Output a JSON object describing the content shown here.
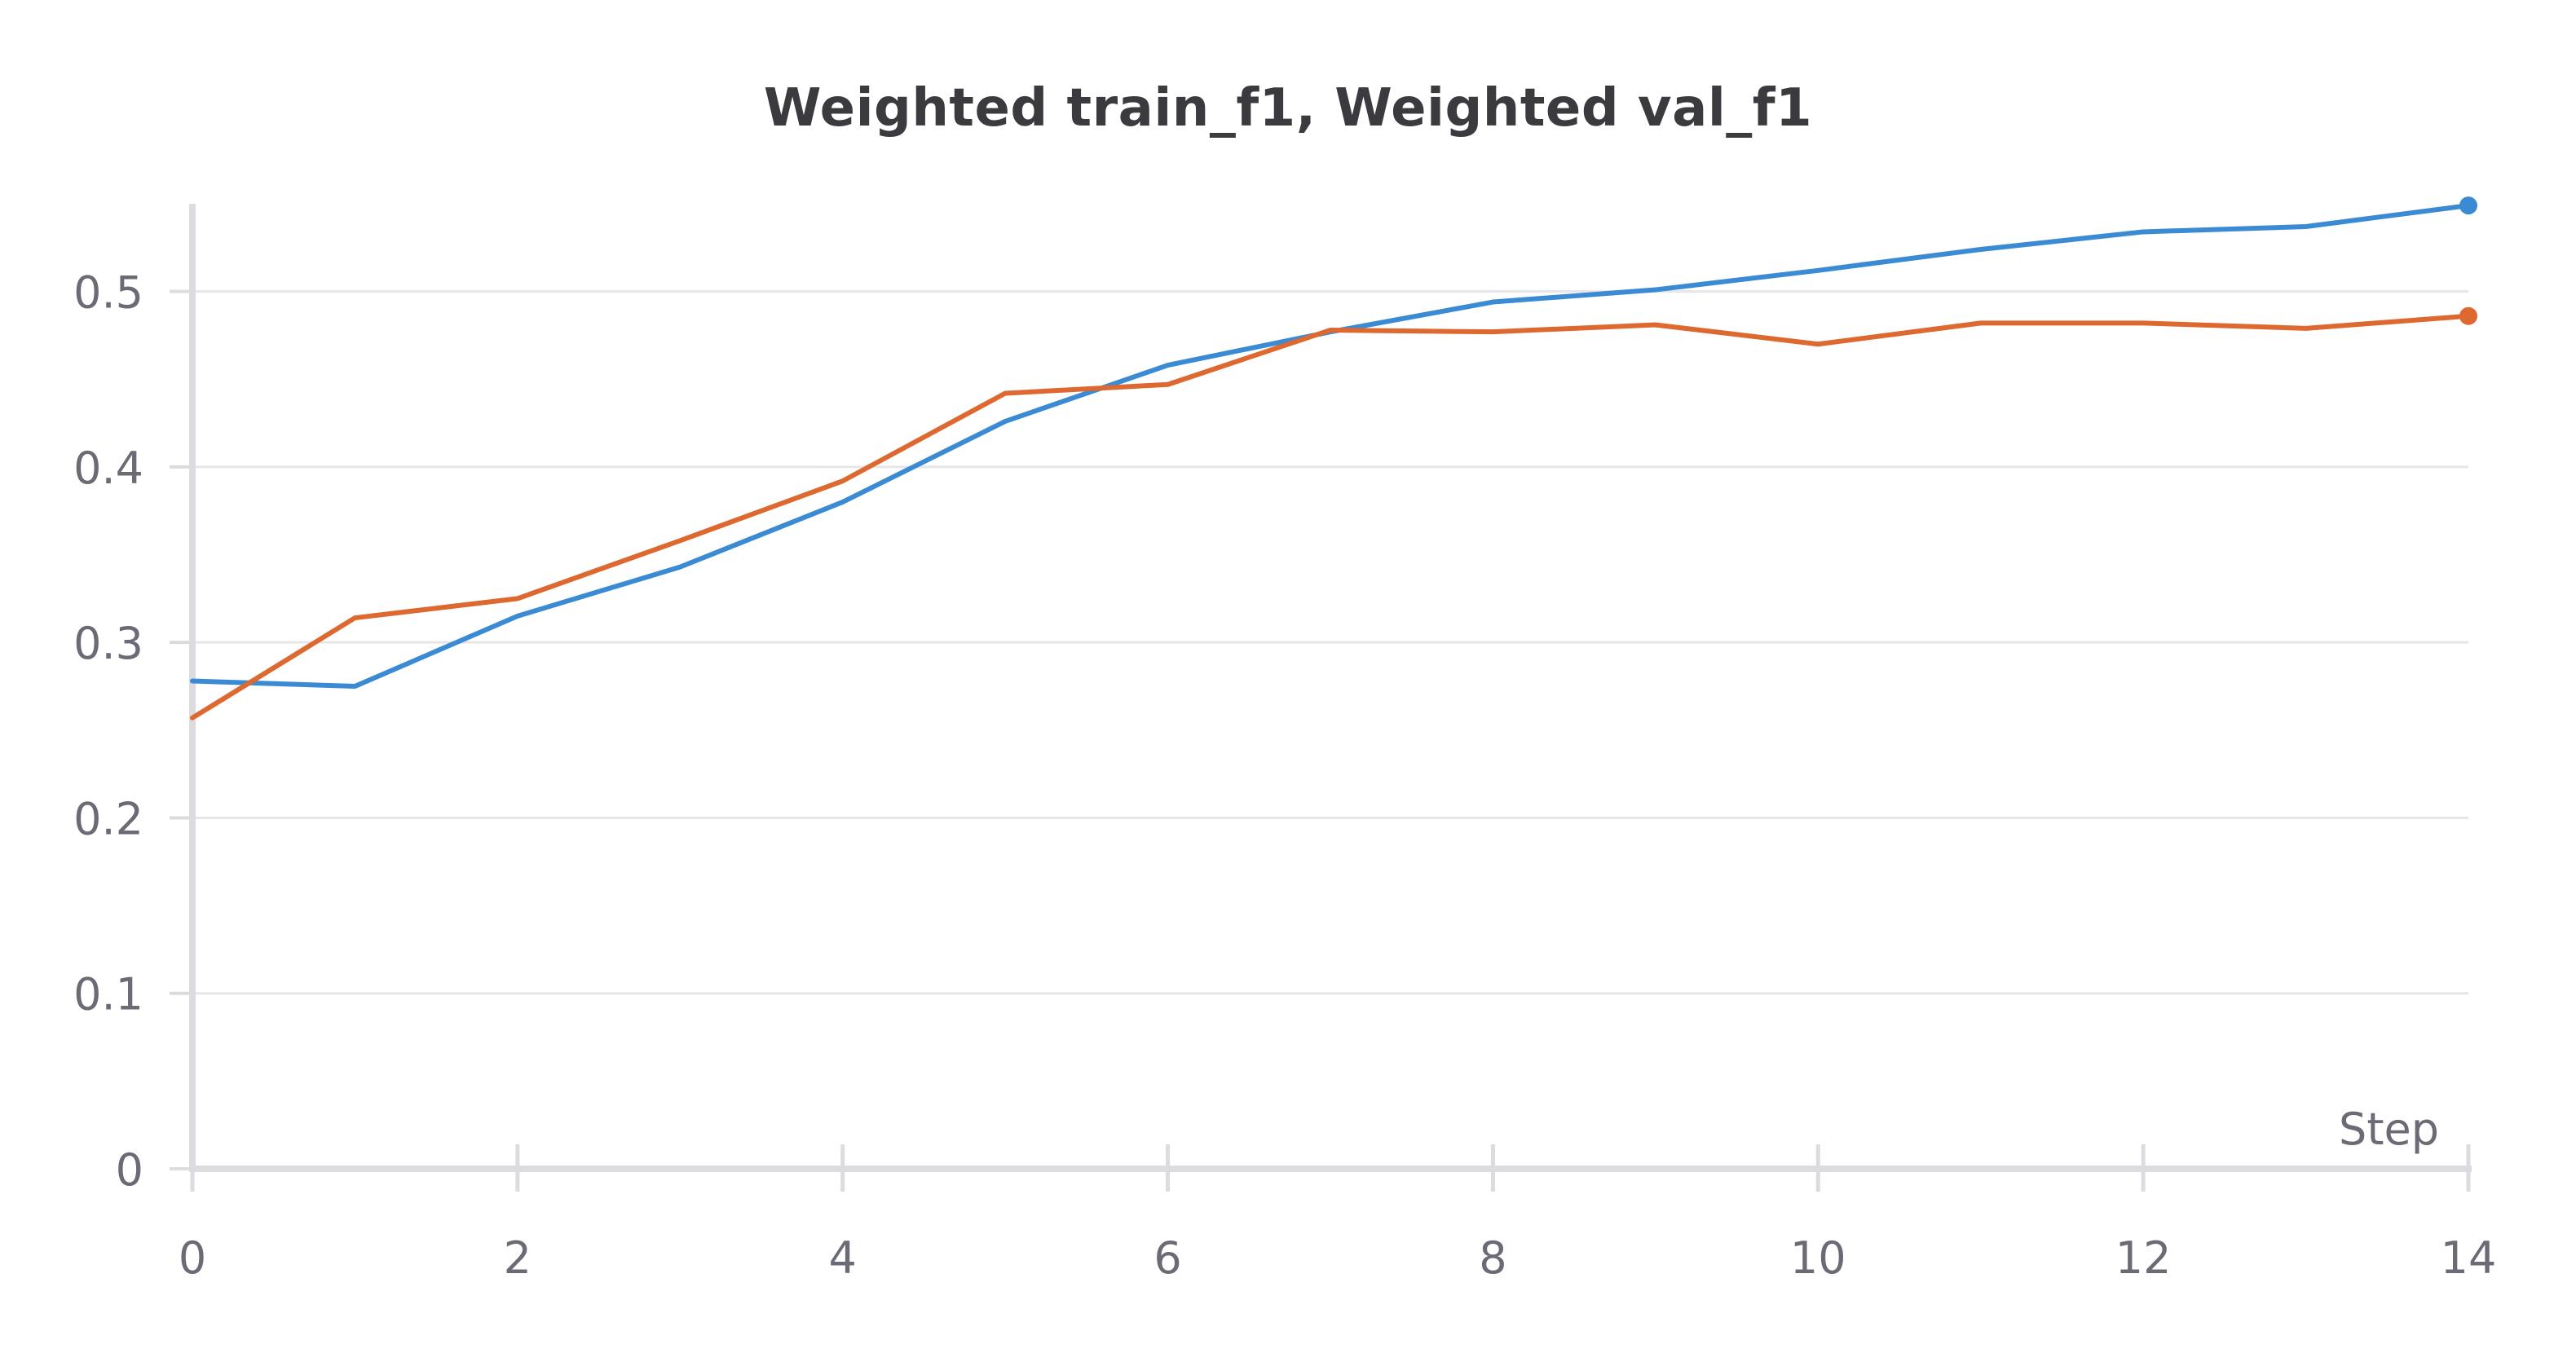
{
  "chart_data": {
    "type": "line",
    "title": "Weighted train_f1, Weighted val_f1",
    "xlabel": "Step",
    "ylabel": "",
    "xlim": [
      0,
      14
    ],
    "ylim": [
      0,
      0.55
    ],
    "x_ticks": [
      0,
      2,
      4,
      6,
      8,
      10,
      12,
      14
    ],
    "x_tick_labels": [
      "0",
      "2",
      "4",
      "6",
      "8",
      "10",
      "12",
      "14"
    ],
    "y_ticks": [
      0,
      0.1,
      0.2,
      0.3,
      0.4,
      0.5
    ],
    "y_tick_labels": [
      "0",
      "0.1",
      "0.2",
      "0.3",
      "0.4",
      "0.5"
    ],
    "grid": true,
    "x": [
      0,
      1,
      2,
      3,
      4,
      5,
      6,
      7,
      8,
      9,
      10,
      11,
      12,
      13,
      14
    ],
    "series": [
      {
        "color": "#3b8bd4",
        "values": [
          0.278,
          0.275,
          0.315,
          0.343,
          0.38,
          0.426,
          0.458,
          0.477,
          0.494,
          0.501,
          0.512,
          0.524,
          0.534,
          0.537,
          0.549
        ]
      },
      {
        "color": "#dd6930",
        "values": [
          0.257,
          0.314,
          0.325,
          0.358,
          0.392,
          0.442,
          0.447,
          0.478,
          0.477,
          0.481,
          0.47,
          0.482,
          0.482,
          0.479,
          0.486
        ]
      }
    ]
  }
}
